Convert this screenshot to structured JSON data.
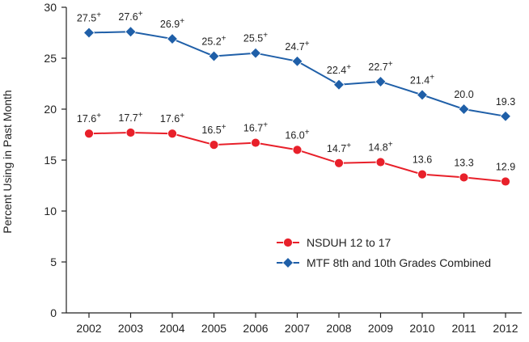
{
  "chart_data": {
    "type": "line",
    "ylabel": "Percent Using in Past Month",
    "xlabel": "",
    "title": "",
    "ylim": [
      0,
      30
    ],
    "yticks": [
      0,
      5,
      10,
      15,
      20,
      25,
      30
    ],
    "categories": [
      "2002",
      "2003",
      "2004",
      "2005",
      "2006",
      "2007",
      "2008",
      "2009",
      "2010",
      "2011",
      "2012"
    ],
    "grid": false,
    "legend_position": "bottom-right",
    "series": [
      {
        "name": "NSDUH 12 to 17",
        "marker": "circle",
        "color": "#e8202a",
        "values": [
          17.6,
          17.7,
          17.6,
          16.5,
          16.7,
          16.0,
          14.7,
          14.8,
          13.6,
          13.3,
          12.9
        ],
        "labels": [
          "17.6+",
          "17.7+",
          "17.6+",
          "16.5+",
          "16.7+",
          "16.0+",
          "14.7+",
          "14.8+",
          "13.6",
          "13.3",
          "12.9"
        ]
      },
      {
        "name": "MTF 8th and 10th Grades Combined",
        "marker": "diamond",
        "color": "#1f5fa8",
        "values": [
          27.5,
          27.6,
          26.9,
          25.2,
          25.5,
          24.7,
          22.4,
          22.7,
          21.4,
          20.0,
          19.3
        ],
        "labels": [
          "27.5+",
          "27.6+",
          "26.9+",
          "25.2+",
          "25.5+",
          "24.7+",
          "22.4+",
          "22.7+",
          "21.4+",
          "20.0",
          "19.3"
        ]
      }
    ]
  }
}
